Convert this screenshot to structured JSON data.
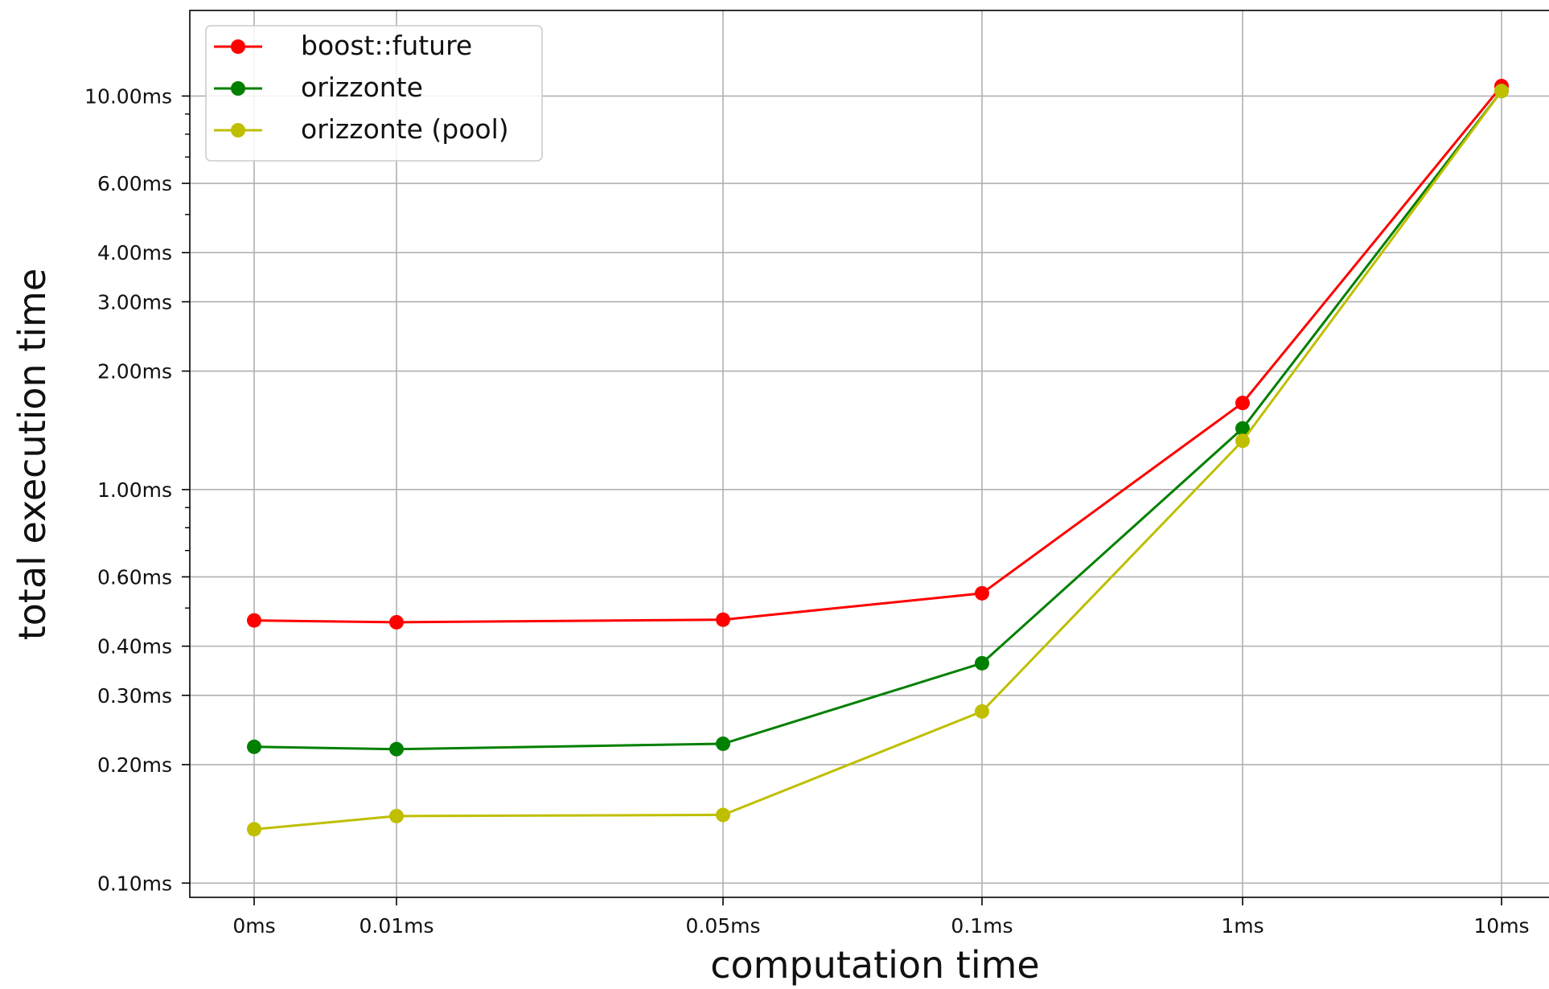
{
  "chart_data": {
    "type": "line",
    "title": "",
    "xlabel": "computation time",
    "ylabel": "total execution time",
    "x_scale": "categorical",
    "y_scale": "log",
    "y_unit": "ms",
    "ylim": [
      0.092,
      16.5
    ],
    "categories": [
      "0ms",
      "0.01ms",
      "0.05ms",
      "0.1ms",
      "1ms",
      "10ms"
    ],
    "y_ticks": [
      0.1,
      0.2,
      0.3,
      0.4,
      0.6,
      1.0,
      2.0,
      3.0,
      4.0,
      6.0,
      10.0
    ],
    "y_tick_labels": [
      "0.10ms",
      "0.20ms",
      "0.30ms",
      "0.40ms",
      "0.60ms",
      "1.00ms",
      "2.00ms",
      "3.00ms",
      "4.00ms",
      "6.00ms",
      "10.00ms"
    ],
    "grid": true,
    "legend_position": "top-left",
    "series": [
      {
        "name": "boost::future",
        "color": "#ff0000",
        "values": [
          0.465,
          0.46,
          0.467,
          0.545,
          1.66,
          10.6
        ]
      },
      {
        "name": "orizzonte",
        "color": "#008000",
        "values": [
          0.222,
          0.219,
          0.226,
          0.362,
          1.43,
          10.3
        ]
      },
      {
        "name": "orizzonte (pool)",
        "color": "#bfbf00",
        "values": [
          0.137,
          0.148,
          0.149,
          0.273,
          1.33,
          10.3
        ]
      }
    ]
  }
}
